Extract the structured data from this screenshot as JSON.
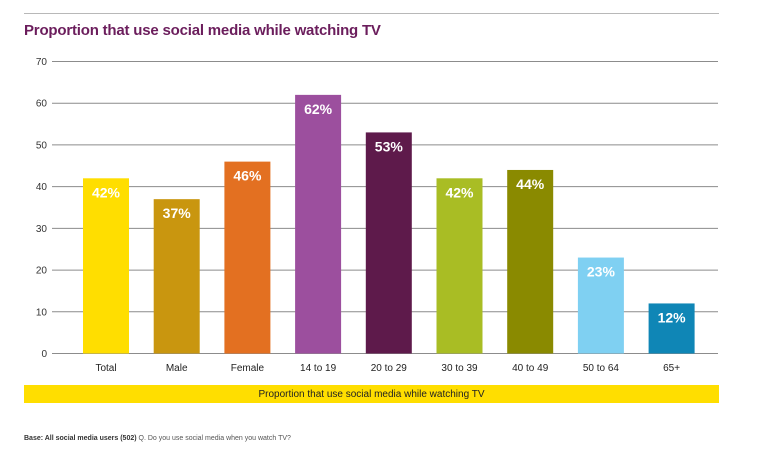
{
  "chart_data": {
    "type": "bar",
    "title": "Proportion that use social media while watching TV",
    "categories": [
      "Total",
      "Male",
      "Female",
      "14 to 19",
      "20 to 29",
      "30 to 39",
      "40 to 49",
      "50 to 64",
      "65+"
    ],
    "values": [
      42,
      37,
      46,
      62,
      53,
      42,
      44,
      23,
      12
    ],
    "data_labels": [
      "42%",
      "37%",
      "46%",
      "62%",
      "53%",
      "42%",
      "44%",
      "23%",
      "12%"
    ],
    "colors": [
      "#ffde00",
      "#c9960f",
      "#e37021",
      "#9c4f9e",
      "#5e1a4b",
      "#a9bd24",
      "#8a8a00",
      "#7fd0f2",
      "#0f86b6"
    ],
    "ylim": [
      0,
      70
    ],
    "yticks": [
      0,
      10,
      20,
      30,
      40,
      50,
      60,
      70
    ],
    "grid": true,
    "legend": {
      "label": "Proportion that use social media while watching TV",
      "position": "bottom",
      "color": "#ffde00"
    }
  },
  "footnote": {
    "base": "Base: All social media users (502)",
    "question": "Q. Do you use social media when you watch TV?"
  },
  "colors": {
    "title": "#6b1d5c",
    "grid": "#8c8c8c",
    "legend_band": "#ffde00"
  }
}
